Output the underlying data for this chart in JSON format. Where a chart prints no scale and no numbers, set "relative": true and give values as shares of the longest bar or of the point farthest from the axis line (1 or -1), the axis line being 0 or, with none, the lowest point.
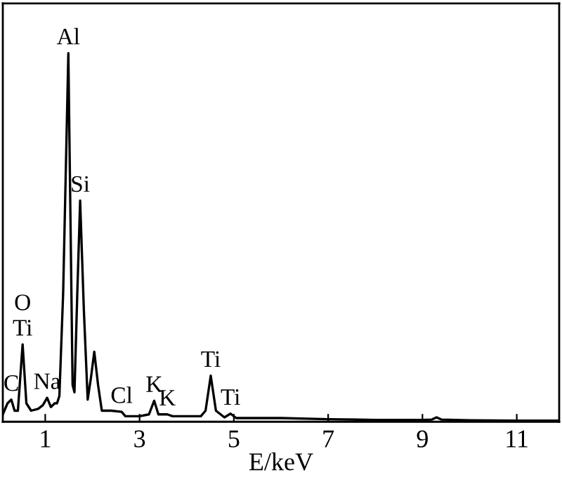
{
  "chart_data": {
    "type": "line",
    "relative": true,
    "xlabel": "E/keV",
    "xlim": [
      0.1,
      11.9
    ],
    "xticks": [
      1,
      3,
      5,
      7,
      9,
      11
    ],
    "grid": false,
    "legend": false,
    "marker": "none",
    "line_style": "solid",
    "series": [
      {
        "color": "#000000",
        "x": [
          0.1,
          0.2,
          0.28,
          0.35,
          0.42,
          0.52,
          0.6,
          0.7,
          0.85,
          0.95,
          1.04,
          1.12,
          1.2,
          1.25,
          1.3,
          1.38,
          1.49,
          1.58,
          1.62,
          1.68,
          1.74,
          1.82,
          1.9,
          1.97,
          2.04,
          2.12,
          2.2,
          2.4,
          2.62,
          2.7,
          3.0,
          3.2,
          3.31,
          3.4,
          3.59,
          3.7,
          4.3,
          4.4,
          4.51,
          4.62,
          4.8,
          4.93,
          5.05,
          6,
          7,
          8,
          9,
          9.2,
          9.3,
          9.4,
          10,
          11,
          11.9
        ],
        "values": [
          0.02,
          0.05,
          0.06,
          0.03,
          0.03,
          0.21,
          0.05,
          0.03,
          0.035,
          0.045,
          0.065,
          0.04,
          0.05,
          0.05,
          0.07,
          0.35,
          1.0,
          0.1,
          0.08,
          0.35,
          0.6,
          0.3,
          0.06,
          0.12,
          0.19,
          0.1,
          0.03,
          0.03,
          0.027,
          0.015,
          0.015,
          0.02,
          0.057,
          0.02,
          0.02,
          0.015,
          0.015,
          0.03,
          0.125,
          0.03,
          0.012,
          0.022,
          0.01,
          0.01,
          0.007,
          0.005,
          0.005,
          0.006,
          0.012,
          0.006,
          0.004,
          0.003,
          0.003
        ]
      }
    ],
    "annotations": [
      {
        "text": "C",
        "x": 0.28,
        "y": 0.06
      },
      {
        "text": "Ti",
        "x": 0.52,
        "y": 0.21
      },
      {
        "text": "O",
        "x": 0.52,
        "y": 0.21
      },
      {
        "text": "Na",
        "x": 1.04,
        "y": 0.065
      },
      {
        "text": "Al",
        "x": 1.49,
        "y": 1.0
      },
      {
        "text": "Si",
        "x": 1.74,
        "y": 0.6
      },
      {
        "text": "Cl",
        "x": 2.62,
        "y": 0.027
      },
      {
        "text": "K",
        "x": 3.31,
        "y": 0.057
      },
      {
        "text": "K",
        "x": 3.59,
        "y": 0.02
      },
      {
        "text": "Ti",
        "x": 4.51,
        "y": 0.125
      },
      {
        "text": "Ti",
        "x": 4.93,
        "y": 0.022
      }
    ]
  }
}
